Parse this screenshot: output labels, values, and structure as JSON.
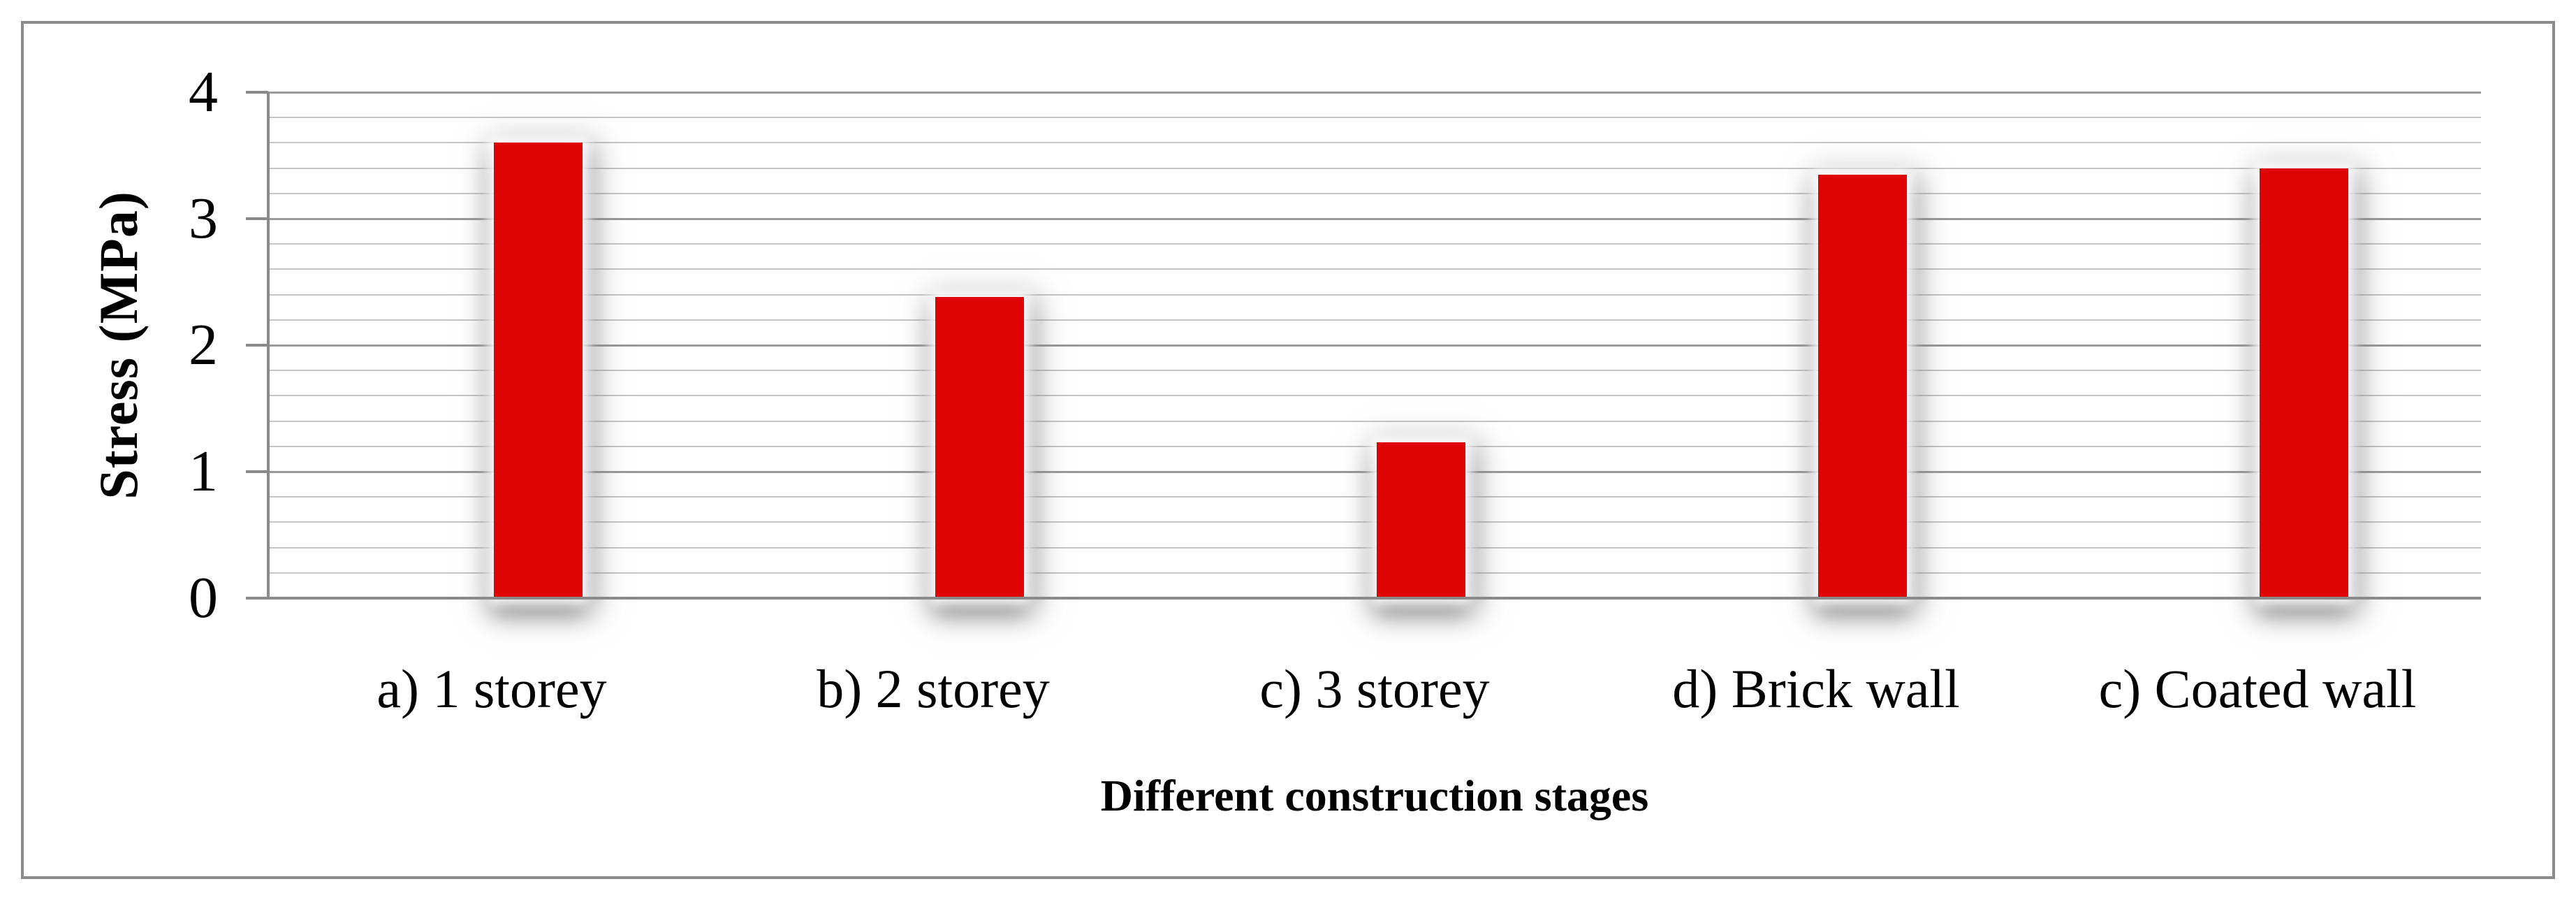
{
  "chart_data": {
    "type": "bar",
    "title": "",
    "categories": [
      "a) 1 storey",
      "b) 2 storey",
      "c) 3 storey",
      "d) Brick wall",
      "c) Coated wall"
    ],
    "values": [
      3.6,
      2.38,
      1.23,
      3.35,
      3.4
    ],
    "series": [
      {
        "name": "Stress",
        "values": [
          3.6,
          2.38,
          1.23,
          3.35,
          3.4
        ]
      }
    ],
    "xlabel": "Different construction stages",
    "ylabel": "Stress (MPa)",
    "ylim": [
      0,
      4
    ],
    "yticks": [
      0,
      1,
      2,
      3,
      4
    ],
    "major_gridline_step": 1,
    "minor_gridline_step": 0.2,
    "grid": "on",
    "legend_position": "none",
    "bar_color": "#de0404",
    "colors": {
      "minor_gridline": "#c6c6c6",
      "major_gridline": "#9a9a9a",
      "axis_line": "#8a8a8a",
      "outer_border": "#8a8a8a",
      "text": "#000000",
      "background": "#ffffff"
    }
  }
}
